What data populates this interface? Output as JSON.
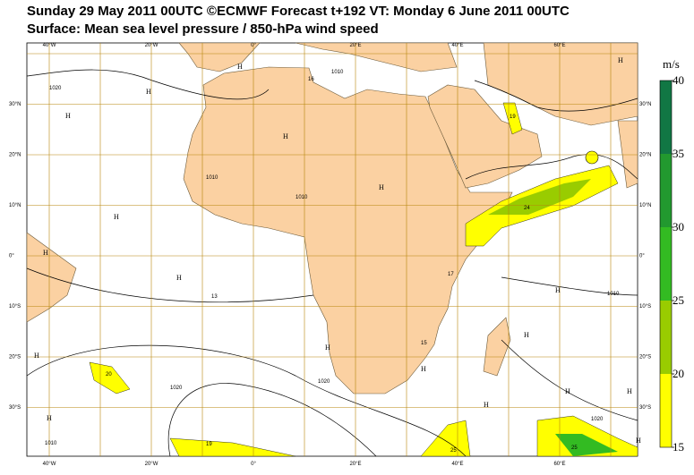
{
  "header": {
    "line1": "Sunday 29 May 2011 00UTC ©ECMWF Forecast t+192 VT: Monday 6 June 2011 00UTC",
    "line2": "Surface: Mean sea level pressure / 850-hPa wind speed"
  },
  "lon_labels": [
    "40°W",
    "20°W",
    "0°",
    "20°E",
    "40°E",
    "60°E"
  ],
  "lat_labels": [
    "30°N",
    "20°N",
    "10°N",
    "0°",
    "10°S",
    "20°S",
    "30°S"
  ],
  "colorbar": {
    "unit": "m/s",
    "ticks": [
      15,
      20,
      25,
      30,
      35,
      40
    ],
    "colors": [
      "#ffff00",
      "#99cc00",
      "#33bb22",
      "#22992f",
      "#117744"
    ]
  },
  "highs": [
    "H",
    "H",
    "H",
    "H",
    "H",
    "H",
    "H",
    "H",
    "H",
    "H",
    "H",
    "H",
    "H",
    "H",
    "H",
    "H",
    "H",
    "H",
    "H"
  ],
  "isobar_labels": [
    "1010",
    "1020",
    "1010",
    "1010",
    "1010",
    "1020",
    "1020",
    "1020",
    "1010"
  ],
  "wind_labels": [
    "16",
    "19",
    "24",
    "13",
    "17",
    "15",
    "20",
    "19",
    "25",
    "25"
  ]
}
